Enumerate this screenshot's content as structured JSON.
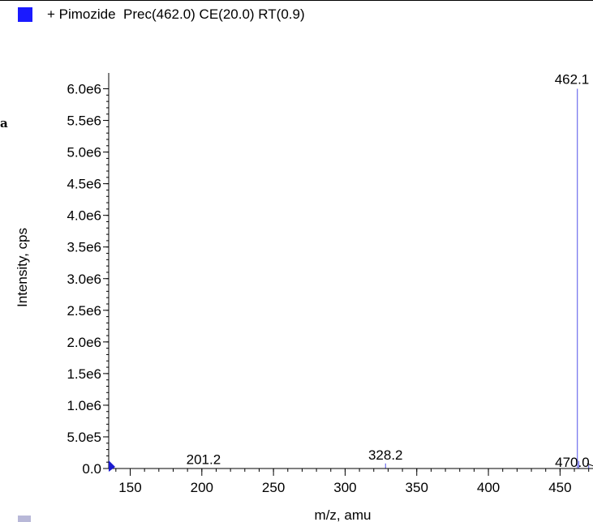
{
  "legend": {
    "label": "+ Pimozide  Prec(462.0) CE(20.0) RT(0.9)",
    "swatch_color": "#1a1aff"
  },
  "side_mark": "a",
  "colors": {
    "series": "#5050e8",
    "axis": "#000000",
    "marker": "#1a1ad0"
  },
  "chart_data": {
    "type": "bar",
    "xlabel": "m/z, amu",
    "ylabel": "Intensity, cps",
    "xlim": [
      135,
      473
    ],
    "ylim": [
      0,
      6250000
    ],
    "x_ticks": [
      150,
      200,
      250,
      300,
      350,
      400,
      450
    ],
    "x_tick_labels": [
      "150",
      "200",
      "250",
      "300",
      "350",
      "400",
      "450"
    ],
    "x_minor_step": 10,
    "y_ticks": [
      0,
      500000,
      1000000,
      1500000,
      2000000,
      2500000,
      3000000,
      3500000,
      4000000,
      4500000,
      5000000,
      5500000,
      6000000
    ],
    "y_tick_labels": [
      "0.0",
      "5.0e5",
      "1.0e6",
      "1.5e6",
      "2.0e6",
      "2.5e6",
      "3.0e6",
      "3.5e6",
      "4.0e6",
      "4.5e6",
      "5.0e6",
      "5.5e6",
      "6.0e6"
    ],
    "y_minor_step": 100000,
    "peaks": [
      {
        "x": 201.2,
        "y": 5000
      },
      {
        "x": 328.2,
        "y": 80000
      },
      {
        "x": 462.1,
        "y": 6000000
      },
      {
        "x": 463.1,
        "y": 120000
      },
      {
        "x": 470.0,
        "y": 50000
      }
    ],
    "peak_labels": [
      {
        "x": 201.2,
        "label": "201.2"
      },
      {
        "x": 328.2,
        "label": "328.2"
      },
      {
        "x": 462.1,
        "label": "462.1"
      },
      {
        "x": 470.0,
        "label": "470.0"
      }
    ],
    "grid": false
  }
}
